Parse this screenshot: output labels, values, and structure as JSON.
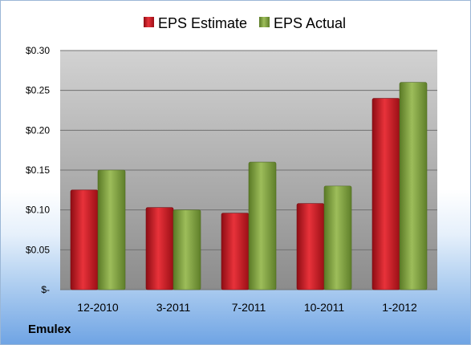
{
  "company": "Emulex",
  "chart_data": {
    "type": "bar",
    "categories": [
      "12-2010",
      "3-2011",
      "7-2011",
      "10-2011",
      "1-2012"
    ],
    "series": [
      {
        "name": "EPS Estimate",
        "values": [
          0.125,
          0.103,
          0.096,
          0.108,
          0.24
        ],
        "color": "#c8141e"
      },
      {
        "name": "EPS Actual",
        "values": [
          0.15,
          0.1,
          0.16,
          0.13,
          0.26
        ],
        "color": "#7a9a3a"
      }
    ],
    "ylim": [
      0,
      0.3
    ],
    "yticks": [
      0,
      0.05,
      0.1,
      0.15,
      0.2,
      0.25,
      0.3
    ],
    "ytick_labels": [
      "$-",
      "$0.05",
      "$0.10",
      "$0.15",
      "$0.20",
      "$0.25",
      "$0.30"
    ],
    "grid": true,
    "legend_position": "top-center",
    "colors": {
      "plot_top": "#d2d2d2",
      "plot_bottom": "#8c8c8c",
      "grid": "#707070"
    }
  }
}
